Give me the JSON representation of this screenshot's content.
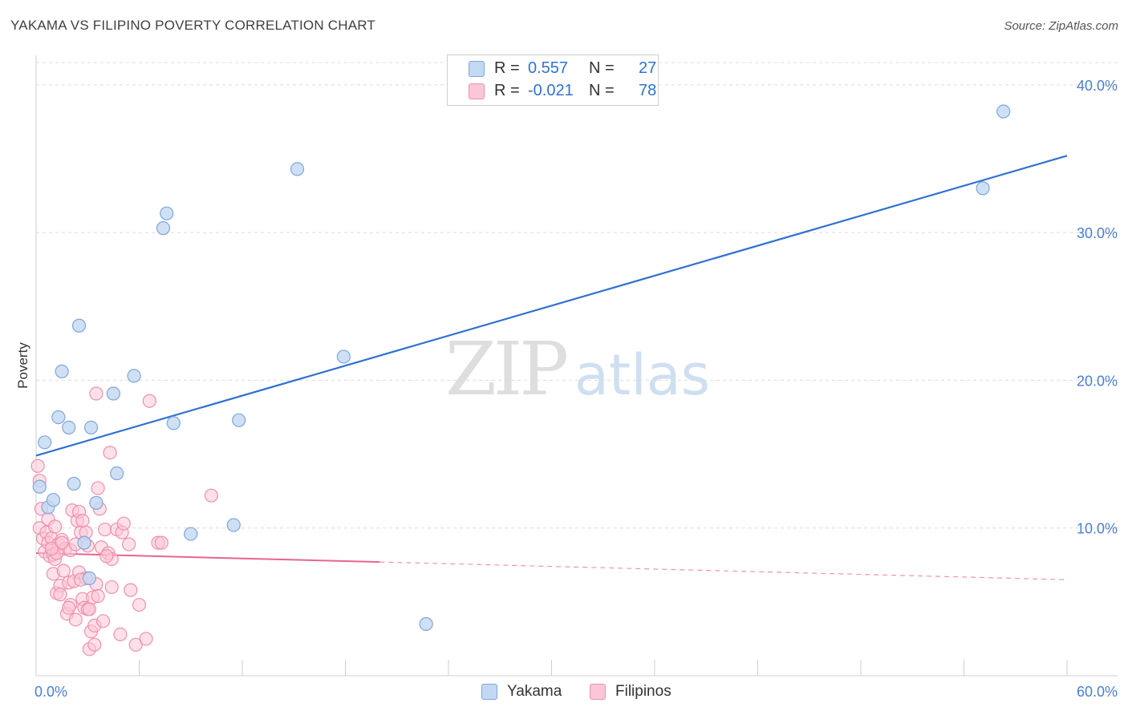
{
  "header": {
    "title": "YAKAMA VS FILIPINO POVERTY CORRELATION CHART",
    "source": "Source: ZipAtlas.com"
  },
  "legend": {
    "rows": [
      {
        "r_label": "R =",
        "r_value": "0.557",
        "n_label": "N =",
        "n_value": "27"
      },
      {
        "r_label": "R =",
        "r_value": "-0.021",
        "n_label": "N =",
        "n_value": "78"
      }
    ],
    "bottom": [
      "Yakama",
      "Filipinos"
    ]
  },
  "colors": {
    "yakama_fill": "#c3d8f3",
    "yakama_stroke": "#7ea6dc",
    "yakama_line": "#2f72cf",
    "filipino_fill": "#fbc6d6",
    "filipino_stroke": "#ef90ae",
    "filipino_line": "#e8648e",
    "tick_label": "#4a7fd0",
    "value_text": "#2f72cf"
  },
  "watermark": {
    "zip": "ZIP",
    "atlas": "atlas"
  },
  "chart_data": {
    "type": "scatter",
    "title": "YAKAMA VS FILIPINO POVERTY CORRELATION CHART",
    "xlabel": "",
    "ylabel": "Poverty",
    "xlim": [
      0,
      60
    ],
    "ylim": [
      0,
      42
    ],
    "x_tick_labels": [
      "0.0%",
      "60.0%"
    ],
    "y_ticks": [
      10,
      20,
      30,
      40
    ],
    "y_tick_labels": [
      "10.0%",
      "20.0%",
      "30.0%",
      "40.0%"
    ],
    "grid": "horizontal dashed",
    "legend_position": "top-center",
    "series": [
      {
        "name": "Yakama",
        "R": 0.557,
        "N": 27,
        "trend": {
          "x0": 0,
          "y0": 14.9,
          "x1": 60,
          "y1": 35.2
        },
        "points": [
          [
            0.2,
            12.8
          ],
          [
            0.5,
            15.8
          ],
          [
            0.7,
            11.4
          ],
          [
            1.0,
            11.9
          ],
          [
            1.3,
            17.5
          ],
          [
            1.5,
            20.6
          ],
          [
            1.9,
            16.8
          ],
          [
            2.2,
            13.0
          ],
          [
            2.5,
            23.7
          ],
          [
            2.8,
            9.0
          ],
          [
            3.1,
            6.6
          ],
          [
            3.2,
            16.8
          ],
          [
            3.5,
            11.7
          ],
          [
            4.5,
            19.1
          ],
          [
            4.7,
            13.7
          ],
          [
            5.7,
            20.3
          ],
          [
            7.4,
            30.3
          ],
          [
            7.6,
            31.3
          ],
          [
            8.0,
            17.1
          ],
          [
            9.0,
            9.6
          ],
          [
            11.5,
            10.2
          ],
          [
            11.8,
            17.3
          ],
          [
            15.2,
            34.3
          ],
          [
            17.9,
            21.6
          ],
          [
            22.7,
            3.5
          ],
          [
            55.1,
            33.0
          ],
          [
            56.3,
            38.2
          ]
        ]
      },
      {
        "name": "Filipinos",
        "R": -0.021,
        "N": 78,
        "trend_solid": {
          "x0": 0,
          "y0": 8.3,
          "x1": 20,
          "y1": 7.7
        },
        "trend_dashed": {
          "x0": 20,
          "y0": 7.7,
          "x1": 60,
          "y1": 6.5
        },
        "points": [
          [
            0.1,
            14.2
          ],
          [
            0.2,
            13.2
          ],
          [
            0.2,
            10.0
          ],
          [
            0.3,
            11.3
          ],
          [
            0.4,
            9.3
          ],
          [
            0.5,
            8.4
          ],
          [
            0.6,
            9.7
          ],
          [
            0.7,
            10.6
          ],
          [
            0.7,
            9.0
          ],
          [
            0.8,
            8.1
          ],
          [
            0.9,
            9.3
          ],
          [
            1.0,
            8.2
          ],
          [
            1.0,
            6.9
          ],
          [
            1.1,
            10.1
          ],
          [
            1.1,
            7.9
          ],
          [
            1.2,
            5.6
          ],
          [
            1.3,
            8.9
          ],
          [
            1.4,
            6.1
          ],
          [
            1.4,
            5.5
          ],
          [
            1.5,
            9.2
          ],
          [
            1.6,
            7.1
          ],
          [
            1.7,
            8.6
          ],
          [
            1.8,
            4.2
          ],
          [
            1.9,
            6.3
          ],
          [
            2.0,
            8.5
          ],
          [
            2.0,
            4.8
          ],
          [
            2.1,
            11.2
          ],
          [
            2.2,
            6.4
          ],
          [
            2.3,
            3.8
          ],
          [
            2.4,
            10.5
          ],
          [
            2.5,
            11.1
          ],
          [
            2.5,
            7.0
          ],
          [
            2.6,
            9.7
          ],
          [
            2.7,
            10.5
          ],
          [
            2.7,
            5.2
          ],
          [
            2.8,
            4.6
          ],
          [
            2.9,
            6.6
          ],
          [
            3.0,
            4.5
          ],
          [
            3.1,
            1.8
          ],
          [
            3.1,
            4.5
          ],
          [
            3.2,
            3.0
          ],
          [
            3.3,
            5.3
          ],
          [
            3.4,
            3.4
          ],
          [
            3.4,
            2.1
          ],
          [
            3.5,
            6.2
          ],
          [
            3.5,
            19.1
          ],
          [
            3.6,
            12.7
          ],
          [
            3.7,
            11.3
          ],
          [
            3.8,
            8.7
          ],
          [
            3.9,
            3.7
          ],
          [
            4.0,
            9.9
          ],
          [
            4.2,
            8.3
          ],
          [
            4.3,
            15.1
          ],
          [
            4.4,
            7.9
          ],
          [
            4.4,
            6.0
          ],
          [
            4.7,
            9.9
          ],
          [
            4.9,
            2.8
          ],
          [
            5.0,
            9.7
          ],
          [
            5.1,
            10.3
          ],
          [
            5.4,
            8.9
          ],
          [
            5.5,
            5.8
          ],
          [
            5.8,
            2.1
          ],
          [
            6.0,
            4.8
          ],
          [
            6.4,
            2.5
          ],
          [
            6.6,
            18.6
          ],
          [
            7.1,
            9.0
          ],
          [
            10.2,
            12.2
          ],
          [
            1.2,
            8.3
          ],
          [
            2.3,
            8.9
          ],
          [
            3.0,
            8.8
          ],
          [
            0.9,
            8.6
          ],
          [
            1.5,
            9.0
          ],
          [
            2.9,
            9.7
          ],
          [
            4.1,
            8.1
          ],
          [
            3.6,
            5.4
          ],
          [
            2.6,
            6.5
          ],
          [
            1.9,
            4.6
          ],
          [
            7.3,
            9.0
          ]
        ]
      }
    ]
  }
}
